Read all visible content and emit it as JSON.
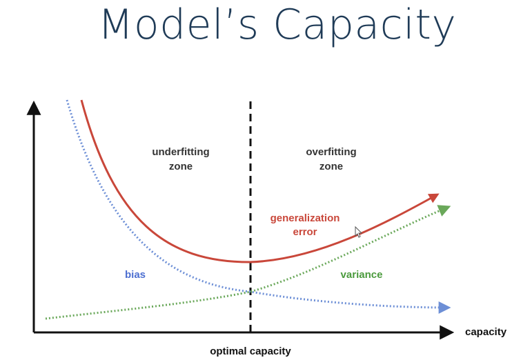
{
  "title": "Model’s Capacity",
  "colors": {
    "title": "#1f3b57",
    "axis": "#111111",
    "generalization_error": "#c9473a",
    "bias": "#4d6fd1",
    "variance": "#4a9a3c",
    "zone_text": "#333333"
  },
  "zones": {
    "underfitting_line1": "underfitting",
    "underfitting_line2": "zone",
    "overfitting_line1": "overfitting",
    "overfitting_line2": "zone"
  },
  "curves": {
    "generalization_line1": "generalization",
    "generalization_line2": "error",
    "bias": "bias",
    "variance": "variance"
  },
  "axis": {
    "x_label": "capacity",
    "optimal_label": "optimal capacity"
  }
}
